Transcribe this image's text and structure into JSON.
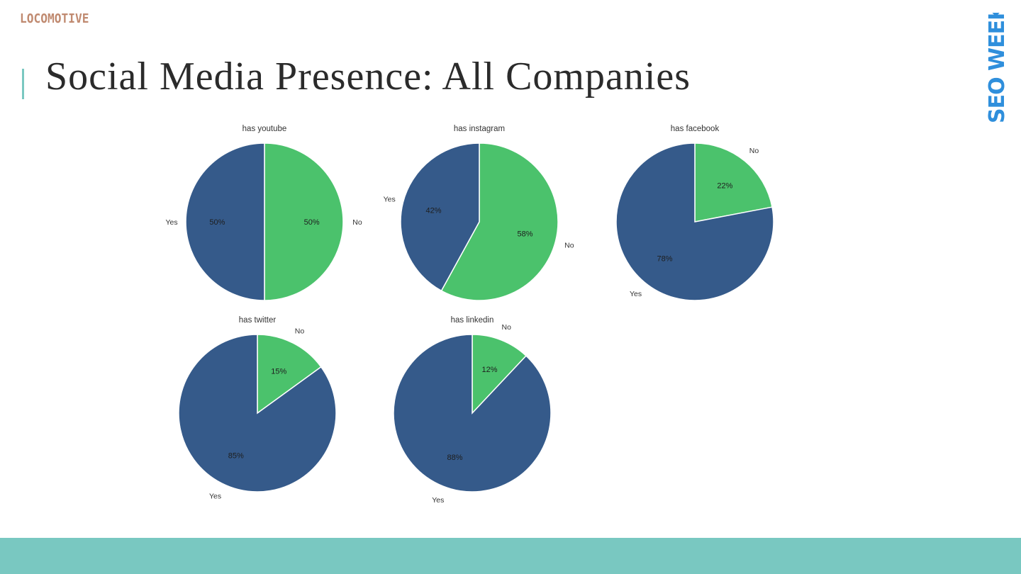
{
  "logo": {
    "text": "LOCOMOTIVE"
  },
  "title": "Social Media Presence: All Companies",
  "brand": {
    "text": "SEO WEEK",
    "color": "#2f8fdc"
  },
  "colors": {
    "yes": "#355a8a",
    "no": "#4bc26c",
    "accent_bar": "#7ac8c1",
    "footer": "#79c8c1",
    "logo": "#c08a70"
  },
  "chart_data": [
    {
      "type": "pie",
      "title": "has youtube",
      "categories": [
        "Yes",
        "No"
      ],
      "values": [
        50,
        50
      ],
      "labels": [
        "50%",
        "50%"
      ]
    },
    {
      "type": "pie",
      "title": "has instagram",
      "categories": [
        "Yes",
        "No"
      ],
      "values": [
        42,
        58
      ],
      "labels": [
        "42%",
        "58%"
      ]
    },
    {
      "type": "pie",
      "title": "has facebook",
      "categories": [
        "Yes",
        "No"
      ],
      "values": [
        78,
        22
      ],
      "labels": [
        "78%",
        "22%"
      ]
    },
    {
      "type": "pie",
      "title": "has twitter",
      "categories": [
        "Yes",
        "No"
      ],
      "values": [
        85,
        15
      ],
      "labels": [
        "85%",
        "15%"
      ]
    },
    {
      "type": "pie",
      "title": "has linkedin",
      "categories": [
        "Yes",
        "No"
      ],
      "values": [
        88,
        12
      ],
      "labels": [
        "88%",
        "12%"
      ]
    }
  ]
}
